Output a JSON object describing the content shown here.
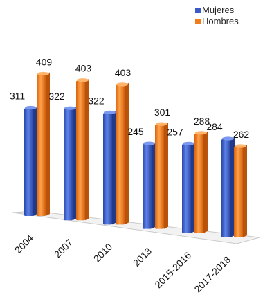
{
  "chart_data": {
    "type": "bar",
    "categories": [
      "2004",
      "2007",
      "2010",
      "2013",
      "2015-2016",
      "2017-2018"
    ],
    "series": [
      {
        "name": "Mujeres",
        "values": [
          311,
          322,
          322,
          245,
          257,
          284
        ],
        "color": "#3a5bc7"
      },
      {
        "name": "Hombres",
        "values": [
          409,
          403,
          403,
          301,
          288,
          262
        ],
        "color": "#f07d1a"
      }
    ],
    "legend_position": "top-right",
    "grid": false,
    "title": "",
    "xlabel": "",
    "ylabel": ""
  }
}
